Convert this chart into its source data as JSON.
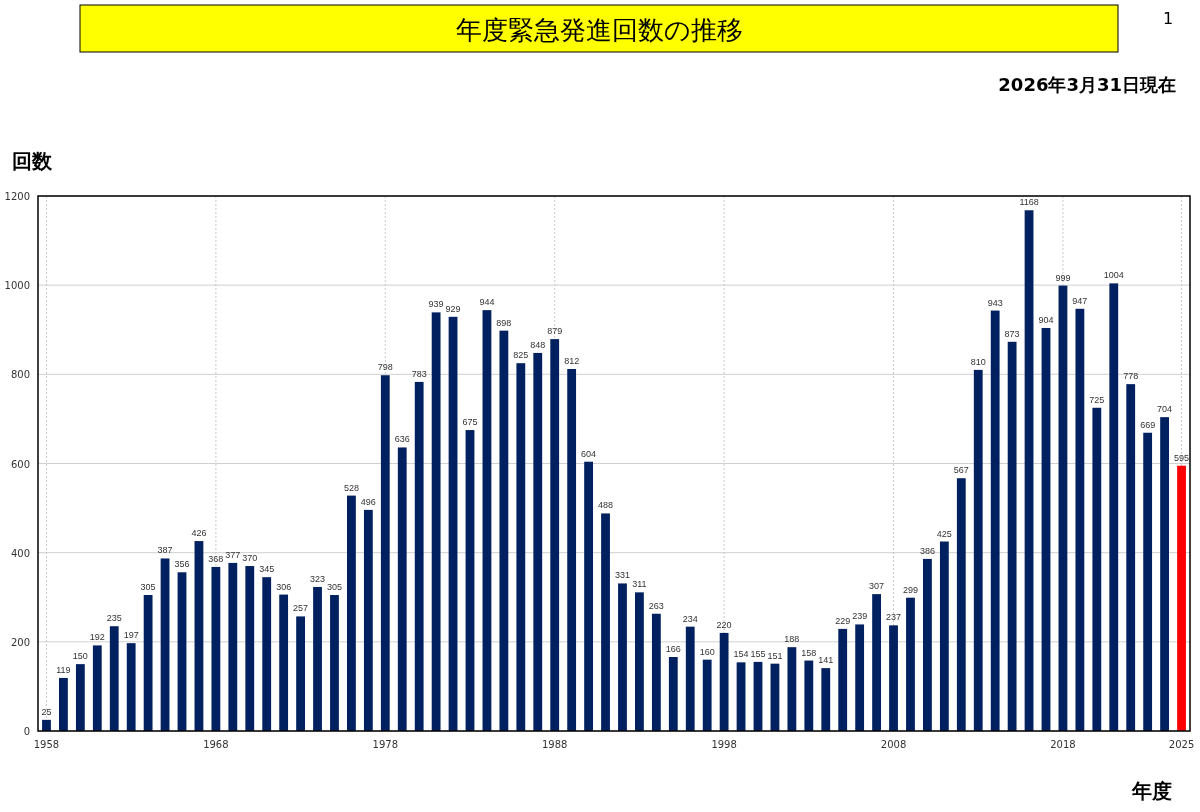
{
  "chart_data": {
    "type": "bar",
    "title": "年度緊急発進回数の推移",
    "subtitle": "2026年3月31日現在",
    "xlabel": "年度",
    "ylabel": "回数",
    "annotations": [
      "1"
    ],
    "categories": [
      "1958",
      null,
      null,
      null,
      null,
      null,
      null,
      null,
      null,
      null,
      "1968",
      null,
      null,
      null,
      null,
      null,
      null,
      null,
      null,
      null,
      "1978",
      null,
      null,
      null,
      null,
      null,
      null,
      null,
      null,
      null,
      "1988",
      null,
      null,
      null,
      null,
      null,
      null,
      null,
      null,
      null,
      "1998",
      null,
      null,
      null,
      null,
      null,
      null,
      null,
      null,
      null,
      "2008",
      null,
      null,
      null,
      null,
      null,
      null,
      null,
      null,
      null,
      "2018",
      null,
      null,
      null,
      null,
      null,
      null,
      "2025"
    ],
    "values": [
      25,
      119,
      150,
      192,
      235,
      197,
      305,
      387,
      356,
      426,
      368,
      377,
      370,
      345,
      306,
      257,
      323,
      305,
      528,
      496,
      798,
      636,
      783,
      939,
      929,
      675,
      944,
      898,
      825,
      848,
      879,
      812,
      604,
      488,
      331,
      311,
      263,
      166,
      234,
      160,
      220,
      154,
      155,
      151,
      188,
      158,
      141,
      229,
      239,
      307,
      237,
      299,
      386,
      425,
      567,
      810,
      943,
      873,
      1168,
      904,
      999,
      947,
      725,
      1004,
      778,
      669,
      704,
      595
    ],
    "colors": [
      "#002060",
      "#002060",
      "#002060",
      "#002060",
      "#002060",
      "#002060",
      "#002060",
      "#002060",
      "#002060",
      "#002060",
      "#002060",
      "#002060",
      "#002060",
      "#002060",
      "#002060",
      "#002060",
      "#002060",
      "#002060",
      "#002060",
      "#002060",
      "#002060",
      "#002060",
      "#002060",
      "#002060",
      "#002060",
      "#002060",
      "#002060",
      "#002060",
      "#002060",
      "#002060",
      "#002060",
      "#002060",
      "#002060",
      "#002060",
      "#002060",
      "#002060",
      "#002060",
      "#002060",
      "#002060",
      "#002060",
      "#002060",
      "#002060",
      "#002060",
      "#002060",
      "#002060",
      "#002060",
      "#002060",
      "#002060",
      "#002060",
      "#002060",
      "#002060",
      "#002060",
      "#002060",
      "#002060",
      "#002060",
      "#002060",
      "#002060",
      "#002060",
      "#002060",
      "#002060",
      "#002060",
      "#002060",
      "#002060",
      "#002060",
      "#002060",
      "#002060",
      "#002060",
      "#ff0000"
    ],
    "ylim": [
      0,
      1200
    ],
    "yticks": [
      0,
      200,
      400,
      600,
      800,
      1000,
      1200
    ],
    "grid": true,
    "data_labels": true
  }
}
